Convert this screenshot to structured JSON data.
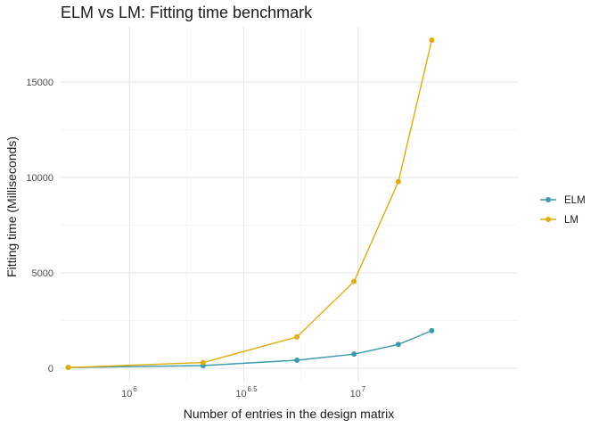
{
  "chart_data": {
    "type": "line",
    "title": "ELM vs LM: Fitting time benchmark",
    "xlabel": "Number of entries in the design matrix",
    "ylabel": "Fitting time (Milliseconds)",
    "x_scale": "log10",
    "xlim": [
      500000,
      50000000
    ],
    "ylim": [
      -700,
      17900
    ],
    "x_ticks": [
      {
        "value": 1000000,
        "base": "10",
        "exp": "6"
      },
      {
        "value": 3162278,
        "base": "10",
        "exp": "6.5"
      },
      {
        "value": 10000000,
        "base": "10",
        "exp": "7"
      }
    ],
    "y_ticks": [
      0,
      5000,
      10000,
      15000
    ],
    "grid": true,
    "legend_position": "right",
    "series": [
      {
        "name": "ELM",
        "color": "#3a9aae",
        "points": [
          {
            "x": 540000,
            "y": 40
          },
          {
            "x": 2100000,
            "y": 140
          },
          {
            "x": 5400000,
            "y": 420
          },
          {
            "x": 9600000,
            "y": 740
          },
          {
            "x": 15000000,
            "y": 1250
          },
          {
            "x": 21000000,
            "y": 1970
          }
        ]
      },
      {
        "name": "LM",
        "color": "#e3ac0b",
        "points": [
          {
            "x": 540000,
            "y": 40
          },
          {
            "x": 2100000,
            "y": 300
          },
          {
            "x": 5400000,
            "y": 1640
          },
          {
            "x": 9600000,
            "y": 4550
          },
          {
            "x": 15000000,
            "y": 9780
          },
          {
            "x": 21000000,
            "y": 17200
          }
        ]
      }
    ]
  }
}
